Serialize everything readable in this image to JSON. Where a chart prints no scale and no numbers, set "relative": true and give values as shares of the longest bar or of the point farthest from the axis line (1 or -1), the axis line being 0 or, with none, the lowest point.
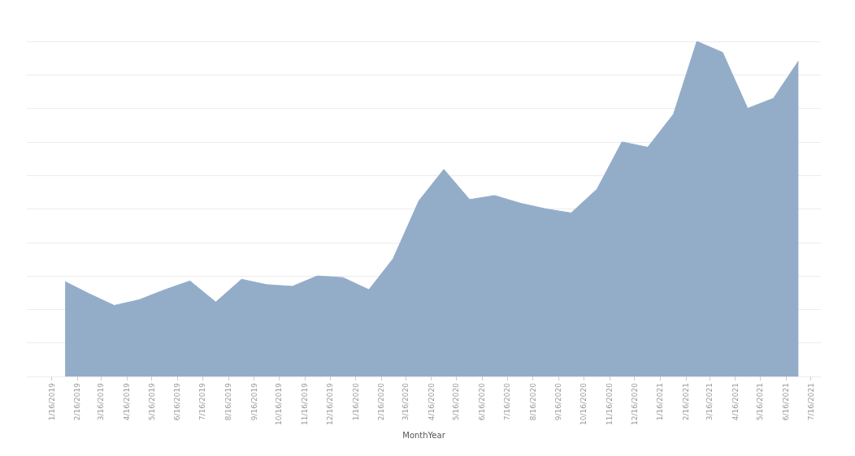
{
  "chart_data": {
    "type": "area",
    "xlabel": "MonthYear",
    "relative": true,
    "grid": "y",
    "color": "#93adc9",
    "x": [
      "2019-02",
      "2019-03",
      "2019-04",
      "2019-05",
      "2019-06",
      "2019-07",
      "2019-08",
      "2019-09",
      "2019-10",
      "2019-11",
      "2019-12",
      "2020-01",
      "2020-02",
      "2020-03",
      "2020-04",
      "2020-05",
      "2020-06",
      "2020-07",
      "2020-08",
      "2020-09",
      "2020-10",
      "2020-11",
      "2020-12",
      "2021-01",
      "2021-02",
      "2021-03",
      "2021-04",
      "2021-05",
      "2021-06",
      "2021-07"
    ],
    "values": [
      0.283,
      0.248,
      0.212,
      0.229,
      0.259,
      0.285,
      0.222,
      0.29,
      0.274,
      0.269,
      0.3,
      0.295,
      0.259,
      0.351,
      0.524,
      0.618,
      0.528,
      0.54,
      0.517,
      0.5,
      0.488,
      0.559,
      0.7,
      0.684,
      0.783,
      1,
      0.967,
      0.8,
      0.83,
      0.941
    ],
    "xlim": [
      "2018-12-17",
      "2021-07-28"
    ],
    "xticks": [
      {
        "value": "2019-01-16",
        "label": "1/16/2019"
      },
      {
        "value": "2019-02-16",
        "label": "2/16/2019"
      },
      {
        "value": "2019-03-16",
        "label": "3/16/2019"
      },
      {
        "value": "2019-04-16",
        "label": "4/16/2019"
      },
      {
        "value": "2019-05-16",
        "label": "5/16/2019"
      },
      {
        "value": "2019-06-16",
        "label": "6/16/2019"
      },
      {
        "value": "2019-07-16",
        "label": "7/16/2019"
      },
      {
        "value": "2019-08-16",
        "label": "8/16/2019"
      },
      {
        "value": "2019-09-16",
        "label": "9/16/2019"
      },
      {
        "value": "2019-10-16",
        "label": "10/16/2019"
      },
      {
        "value": "2019-11-16",
        "label": "11/16/2019"
      },
      {
        "value": "2019-12-16",
        "label": "12/16/2019"
      },
      {
        "value": "2020-01-16",
        "label": "1/16/2020"
      },
      {
        "value": "2020-02-16",
        "label": "2/16/2020"
      },
      {
        "value": "2020-03-16",
        "label": "3/16/2020"
      },
      {
        "value": "2020-04-16",
        "label": "4/16/2020"
      },
      {
        "value": "2020-05-16",
        "label": "5/16/2020"
      },
      {
        "value": "2020-06-16",
        "label": "6/16/2020"
      },
      {
        "value": "2020-07-16",
        "label": "7/16/2020"
      },
      {
        "value": "2020-08-16",
        "label": "8/16/2020"
      },
      {
        "value": "2020-09-16",
        "label": "9/16/2020"
      },
      {
        "value": "2020-10-16",
        "label": "10/16/2020"
      },
      {
        "value": "2020-11-16",
        "label": "11/16/2020"
      },
      {
        "value": "2020-12-16",
        "label": "12/16/2020"
      },
      {
        "value": "2021-01-16",
        "label": "1/16/2021"
      },
      {
        "value": "2021-02-16",
        "label": "2/16/2021"
      },
      {
        "value": "2021-03-16",
        "label": "3/16/2021"
      },
      {
        "value": "2021-04-16",
        "label": "4/16/2021"
      },
      {
        "value": "2021-05-16",
        "label": "5/16/2021"
      },
      {
        "value": "2021-06-16",
        "label": "6/16/2021"
      },
      {
        "value": "2021-07-16",
        "label": "7/16/2021"
      }
    ]
  }
}
